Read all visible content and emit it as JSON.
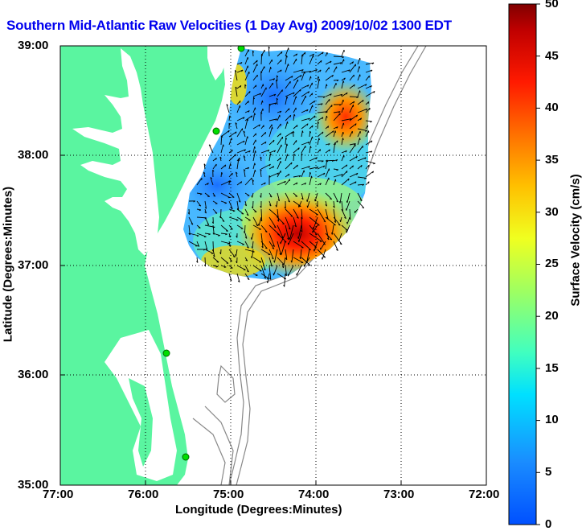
{
  "title": "Southern Mid-Atlantic Raw Velocities (1 Day Avg) 2009/10/02 1300 EDT",
  "axes": {
    "x_label": "Longitude (Degrees:Minutes)",
    "y_label": "Latitude (Degrees:Minutes)",
    "x_ticks": [
      "77:00",
      "76:00",
      "75:00",
      "74:00",
      "73:00",
      "72:00"
    ],
    "y_ticks": [
      "39:00",
      "38:00",
      "37:00",
      "36:00",
      "35:00"
    ]
  },
  "colorbar": {
    "label": "Surface Velocity (cm/s)",
    "ticks": [
      "50",
      "45",
      "40",
      "35",
      "30",
      "25",
      "20",
      "15",
      "10",
      "5",
      "0"
    ],
    "range": [
      0,
      50
    ]
  },
  "colors": {
    "land": "#5af5a0",
    "title": "#0000ee",
    "bathymetry": "#888888"
  },
  "stations": [
    {
      "name": "station-1"
    },
    {
      "name": "station-2"
    },
    {
      "name": "station-3"
    },
    {
      "name": "station-4"
    }
  ]
}
